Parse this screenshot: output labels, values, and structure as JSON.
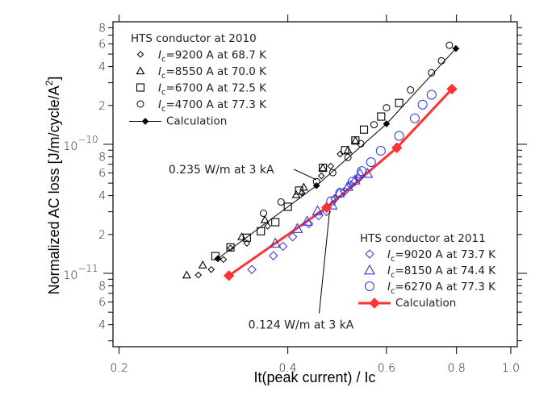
{
  "chart_data": {
    "type": "scatter",
    "title": "",
    "xlabel": "It(peak current) / Ic",
    "ylabel": "Normalized AC loss [J/m/cycle/A",
    "ylabel_superscript": "2",
    "ylabel_close": "]",
    "xscale": "log",
    "yscale": "log",
    "xlim": [
      0.195,
      1.027
    ],
    "ylim": [
      2.7e-12,
      8.9e-10
    ],
    "grid": false,
    "x_ticks": [
      {
        "value": 0.2,
        "label": "0.2"
      },
      {
        "value": 0.4,
        "label": "0.4"
      },
      {
        "value": 0.6,
        "label": "0.6"
      },
      {
        "value": 0.8,
        "label": "0.8"
      },
      {
        "value": 1.0,
        "label": "1.0"
      }
    ],
    "x_minor_ticks": [],
    "y_major_ticks": [
      {
        "value": 1e-11,
        "base": "10",
        "exp": "−11"
      },
      {
        "value": 1e-10,
        "base": "10",
        "exp": "−10"
      }
    ],
    "y_minor_ticks": [
      {
        "value": 3e-12,
        "label": ""
      },
      {
        "value": 4e-12,
        "label": "4"
      },
      {
        "value": 5e-12,
        "label": ""
      },
      {
        "value": 6e-12,
        "label": "6"
      },
      {
        "value": 7e-12,
        "label": ""
      },
      {
        "value": 8e-12,
        "label": "8"
      },
      {
        "value": 9e-12,
        "label": ""
      },
      {
        "value": 2e-11,
        "label": "2"
      },
      {
        "value": 3e-11,
        "label": ""
      },
      {
        "value": 4e-11,
        "label": "4"
      },
      {
        "value": 5e-11,
        "label": ""
      },
      {
        "value": 6e-11,
        "label": "6"
      },
      {
        "value": 7e-11,
        "label": ""
      },
      {
        "value": 8e-11,
        "label": "8"
      },
      {
        "value": 9e-11,
        "label": ""
      },
      {
        "value": 2e-10,
        "label": "2"
      },
      {
        "value": 3e-10,
        "label": ""
      },
      {
        "value": 4e-10,
        "label": "4"
      },
      {
        "value": 5e-10,
        "label": ""
      },
      {
        "value": 6e-10,
        "label": "6"
      },
      {
        "value": 7e-10,
        "label": ""
      },
      {
        "value": 8e-10,
        "label": "8"
      }
    ],
    "legend_groups": [
      {
        "title": "HTS conductor at 2010",
        "placement": "top-left",
        "entries": [
          {
            "series": 0,
            "prefix": "I",
            "sub": "c",
            "text": "=9200 A at 68.7 K"
          },
          {
            "series": 1,
            "prefix": "I",
            "sub": "c",
            "text": "=8550 A at 70.0 K"
          },
          {
            "series": 2,
            "prefix": "I",
            "sub": "c",
            "text": "=6700 A at 72.5 K"
          },
          {
            "series": 3,
            "prefix": "I",
            "sub": "c",
            "text": "=4700 A at 77.3 K"
          },
          {
            "series": 4,
            "prefix": "",
            "sub": "",
            "text": "Calculation"
          }
        ]
      },
      {
        "title": "HTS conductor at 2011",
        "placement": "bottom-right",
        "entries": [
          {
            "series": 5,
            "prefix": "I",
            "sub": "c",
            "text": "=9020 A at 73.7 K"
          },
          {
            "series": 6,
            "prefix": "I",
            "sub": "c",
            "text": "=8150 A at 74.4 K"
          },
          {
            "series": 7,
            "prefix": "I",
            "sub": "c",
            "text": "=6270 A at 77.3 K"
          },
          {
            "series": 8,
            "prefix": "",
            "sub": "",
            "text": "Calculation"
          }
        ]
      }
    ],
    "series": [
      {
        "name": "Ic=9200 A at 68.7 K (2010)",
        "marker": "diamond",
        "color": "#000000",
        "size": 3.6,
        "line": false,
        "points": [
          [
            0.277,
            9.7e-12
          ],
          [
            0.292,
            1.07e-11
          ],
          [
            0.307,
            1.28e-11
          ],
          [
            0.316,
            1.57e-11
          ],
          [
            0.338,
            1.71e-11
          ],
          [
            0.368,
            2.32e-11
          ],
          [
            0.424,
            4.2e-11
          ],
          [
            0.459,
            5.69e-11
          ],
          [
            0.477,
            6.77e-11
          ],
          [
            0.496,
            8.4e-11
          ]
        ]
      },
      {
        "name": "Ic=8550 A at 70.0 K (2010)",
        "marker": "triangle",
        "color": "#000000",
        "size": 4.5,
        "line": false,
        "points": [
          [
            0.264,
            9.7e-12
          ],
          [
            0.282,
            1.16e-11
          ],
          [
            0.331,
            1.92e-11
          ],
          [
            0.364,
            2.6e-11
          ],
          [
            0.414,
            4.07e-11
          ],
          [
            0.427,
            4.65e-11
          ],
          [
            0.462,
            6.57e-11
          ],
          [
            0.512,
            9e-11
          ],
          [
            0.528,
            1.07e-10
          ]
        ]
      },
      {
        "name": "Ic=6700 A at 72.5 K (2010)",
        "marker": "square",
        "color": "#000000",
        "size": 4.5,
        "line": false,
        "points": [
          [
            0.297,
            1.36e-11
          ],
          [
            0.316,
            1.59e-11
          ],
          [
            0.338,
            1.89e-11
          ],
          [
            0.358,
            2.12e-11
          ],
          [
            0.38,
            2.49e-11
          ],
          [
            0.4,
            3.28e-11
          ],
          [
            0.419,
            4.38e-11
          ],
          [
            0.462,
            6.57e-11
          ],
          [
            0.506,
            9e-11
          ],
          [
            0.528,
            1.07e-10
          ],
          [
            0.547,
            1.3e-10
          ],
          [
            0.587,
            1.64e-10
          ],
          [
            0.632,
            2.09e-10
          ]
        ]
      },
      {
        "name": "Ic=4700 A at 77.3 K (2010)",
        "marker": "circle",
        "color": "#000000",
        "size": 4,
        "line": false,
        "points": [
          [
            0.362,
            2.92e-11
          ],
          [
            0.389,
            3.57e-11
          ],
          [
            0.45,
            5.14e-11
          ],
          [
            0.481,
            6.03e-11
          ],
          [
            0.512,
            7.9e-11
          ],
          [
            0.54,
            1.01e-10
          ],
          [
            0.57,
            1.42e-10
          ],
          [
            0.6,
            1.92e-10
          ],
          [
            0.662,
            2.64e-10
          ],
          [
            0.722,
            3.58e-10
          ],
          [
            0.752,
            4.44e-10
          ],
          [
            0.777,
            5.85e-10
          ]
        ]
      },
      {
        "name": "Calculation (2010)",
        "marker": "filled-diamond",
        "color": "#000000",
        "size": 3.6,
        "line": true,
        "line_width": 1,
        "points": [
          [
            0.3,
            1.3e-11
          ],
          [
            0.45,
            4.78e-11
          ],
          [
            0.6,
            1.44e-10
          ],
          [
            0.798,
            5.52e-10
          ]
        ]
      },
      {
        "name": "Ic=9020 A at 73.7 K (2011)",
        "marker": "diamond",
        "color": "#3333dd",
        "size": 5,
        "line": false,
        "points": [
          [
            0.345,
            1.07e-11
          ],
          [
            0.377,
            1.37e-11
          ],
          [
            0.392,
            1.62e-11
          ],
          [
            0.408,
            1.92e-11
          ],
          [
            0.436,
            2.42e-11
          ],
          [
            0.454,
            2.8e-11
          ],
          [
            0.469,
            3.01e-11
          ],
          [
            0.485,
            3.79e-11
          ],
          [
            0.505,
            4.32e-11
          ],
          [
            0.518,
            4.85e-11
          ],
          [
            0.535,
            5.44e-11
          ]
        ]
      },
      {
        "name": "Ic=8150 A at 74.4 K (2011)",
        "marker": "triangle",
        "color": "#3333dd",
        "size": 6,
        "line": false,
        "points": [
          [
            0.38,
            1.71e-11
          ],
          [
            0.416,
            2.22e-11
          ],
          [
            0.433,
            2.53e-11
          ],
          [
            0.452,
            3.05e-11
          ],
          [
            0.48,
            3.38e-11
          ],
          [
            0.494,
            4.2e-11
          ],
          [
            0.512,
            4.71e-11
          ],
          [
            0.527,
            5.28e-11
          ],
          [
            0.538,
            5.94e-11
          ],
          [
            0.555,
            5.94e-11
          ]
        ]
      },
      {
        "name": "Ic=6270 A at 77.3 K (2011)",
        "marker": "circle",
        "color": "#3333dd",
        "size": 5.5,
        "line": false,
        "points": [
          [
            0.478,
            3.63e-11
          ],
          [
            0.496,
            4.2e-11
          ],
          [
            0.522,
            5.14e-11
          ],
          [
            0.542,
            6.2e-11
          ],
          [
            0.563,
            7.27e-11
          ],
          [
            0.586,
            8.9e-11
          ],
          [
            0.632,
            1.16e-10
          ],
          [
            0.674,
            1.59e-10
          ],
          [
            0.696,
            2.03e-10
          ],
          [
            0.722,
            2.42e-10
          ]
        ]
      },
      {
        "name": "Calculation (2011)",
        "marker": "filled-diamond",
        "color": "#ff3333",
        "size": 6,
        "line": true,
        "line_width": 3,
        "points": [
          [
            0.314,
            9.6e-12
          ],
          [
            0.469,
            3.23e-11
          ],
          [
            0.626,
            9.4e-11
          ],
          [
            0.785,
            2.68e-10
          ]
        ]
      }
    ],
    "annotations": [
      {
        "text": "0.235 W/m at 3 kA",
        "target": [
          0.45,
          5.3e-11
        ],
        "anchor_point": [
          0.41,
          6.4e-11
        ],
        "text_point": [
          0.245,
          6.4e-11
        ]
      },
      {
        "text": "0.124 W/m at 3 kA",
        "target": [
          0.475,
          3.05e-11
        ],
        "anchor_point": [
          0.455,
          4.9e-12
        ],
        "text_point": [
          0.34,
          4e-12
        ]
      }
    ]
  }
}
